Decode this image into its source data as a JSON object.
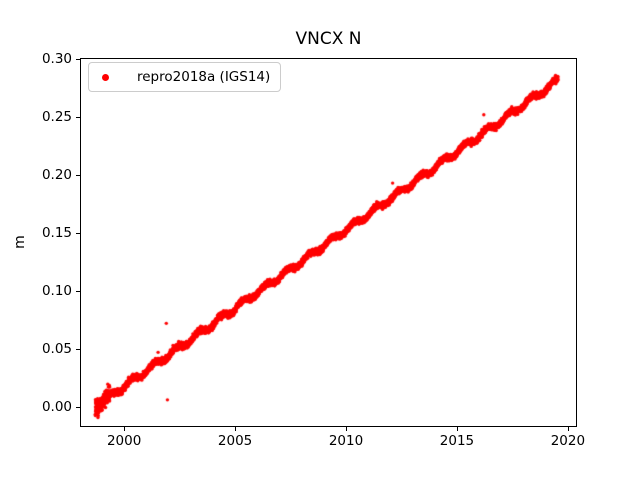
{
  "chart_data": {
    "type": "scatter",
    "title": "VNCX N",
    "xlabel": "",
    "ylabel": "m",
    "xlim": [
      1998.01,
      2020.41
    ],
    "ylim": [
      -0.0174,
      0.3009
    ],
    "grid": false,
    "xticks": {
      "values": [
        2000,
        2005,
        2010,
        2015,
        2020
      ],
      "labels": [
        "2000",
        "2005",
        "2010",
        "2015",
        "2020"
      ]
    },
    "yticks": {
      "values": [
        0.0,
        0.05,
        0.1,
        0.15,
        0.2,
        0.25,
        0.3
      ],
      "labels": [
        "0.00",
        "0.05",
        "0.10",
        "0.15",
        "0.20",
        "0.25",
        "0.30"
      ]
    },
    "legend": {
      "position": "upper-left",
      "entries": [
        {
          "label": "repro2018a (IGS14)",
          "color": "#ff0000",
          "marker": "circle"
        }
      ]
    },
    "series": [
      {
        "name": "repro2018a (IGS14)",
        "color": "#ff0000",
        "marker": "circle",
        "marker_radius_px": 1.7,
        "trend": {
          "t_start": 1998.7,
          "t_end": 2019.55,
          "start_value_m": 0.0,
          "end_value_m": 0.2815,
          "slope_m_per_yr": 0.0135,
          "seasonal_amplitude_m": 0.0022,
          "seasonal_phase_yr": 0.1,
          "noise_sd_m": 0.0013,
          "samples_per_year": 365,
          "initial_cluster": {
            "t_end": 1999.35,
            "noise_sd_m": 0.0035
          }
        },
        "outliers": [
          [
            2001.3,
            0.04
          ],
          [
            2001.53,
            0.047
          ],
          [
            2001.9,
            0.072
          ],
          [
            2001.95,
            0.006
          ],
          [
            2002.08,
            0.049
          ],
          [
            2002.2,
            0.053
          ],
          [
            2012.1,
            0.193
          ],
          [
            2016.21,
            0.252
          ]
        ]
      }
    ]
  }
}
